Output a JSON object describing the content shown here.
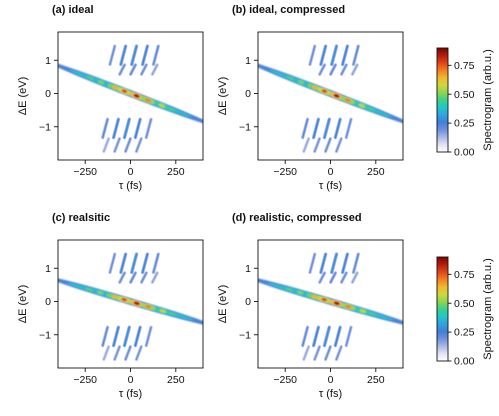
{
  "chart_data": {
    "type": "heatmap",
    "colormap": [
      "#ffffff",
      "#e1e3f2",
      "#a9b8e6",
      "#6f90dc",
      "#3f7fd8",
      "#2fa4e0",
      "#21c7c9",
      "#3ed08a",
      "#8fd54f",
      "#d2d63b",
      "#f2b82e",
      "#f37e21",
      "#dd4519",
      "#b31c0c",
      "#7a0403"
    ],
    "xlabel": "τ (fs)",
    "ylabel": "ΔE (eV)",
    "xlim": [
      -400,
      400
    ],
    "ylim": [
      -2,
      1.85
    ],
    "xticks": [
      -250,
      0,
      250
    ],
    "yticks": [
      1,
      0,
      -1
    ],
    "colorbar": {
      "label": "Spectrogram (arb.u.)",
      "range": [
        0,
        0.9
      ],
      "ticks": [
        0.0,
        0.25,
        0.5,
        0.75
      ],
      "tick_labels": [
        "0.00",
        "0.25",
        "0.50",
        "0.75"
      ]
    },
    "panels": [
      {
        "title": "(a) ideal",
        "tilt_ev_per_fs": -0.0021,
        "peak": 0.9
      },
      {
        "title": "(b) ideal, compressed",
        "tilt_ev_per_fs": -0.0021,
        "peak": 0.9
      },
      {
        "title": "(c) realsitic",
        "tilt_ev_per_fs": -0.0016,
        "peak": 0.9
      },
      {
        "title": "(d) realistic, compressed",
        "tilt_ev_per_fs": -0.0016,
        "peak": 0.9
      }
    ]
  }
}
